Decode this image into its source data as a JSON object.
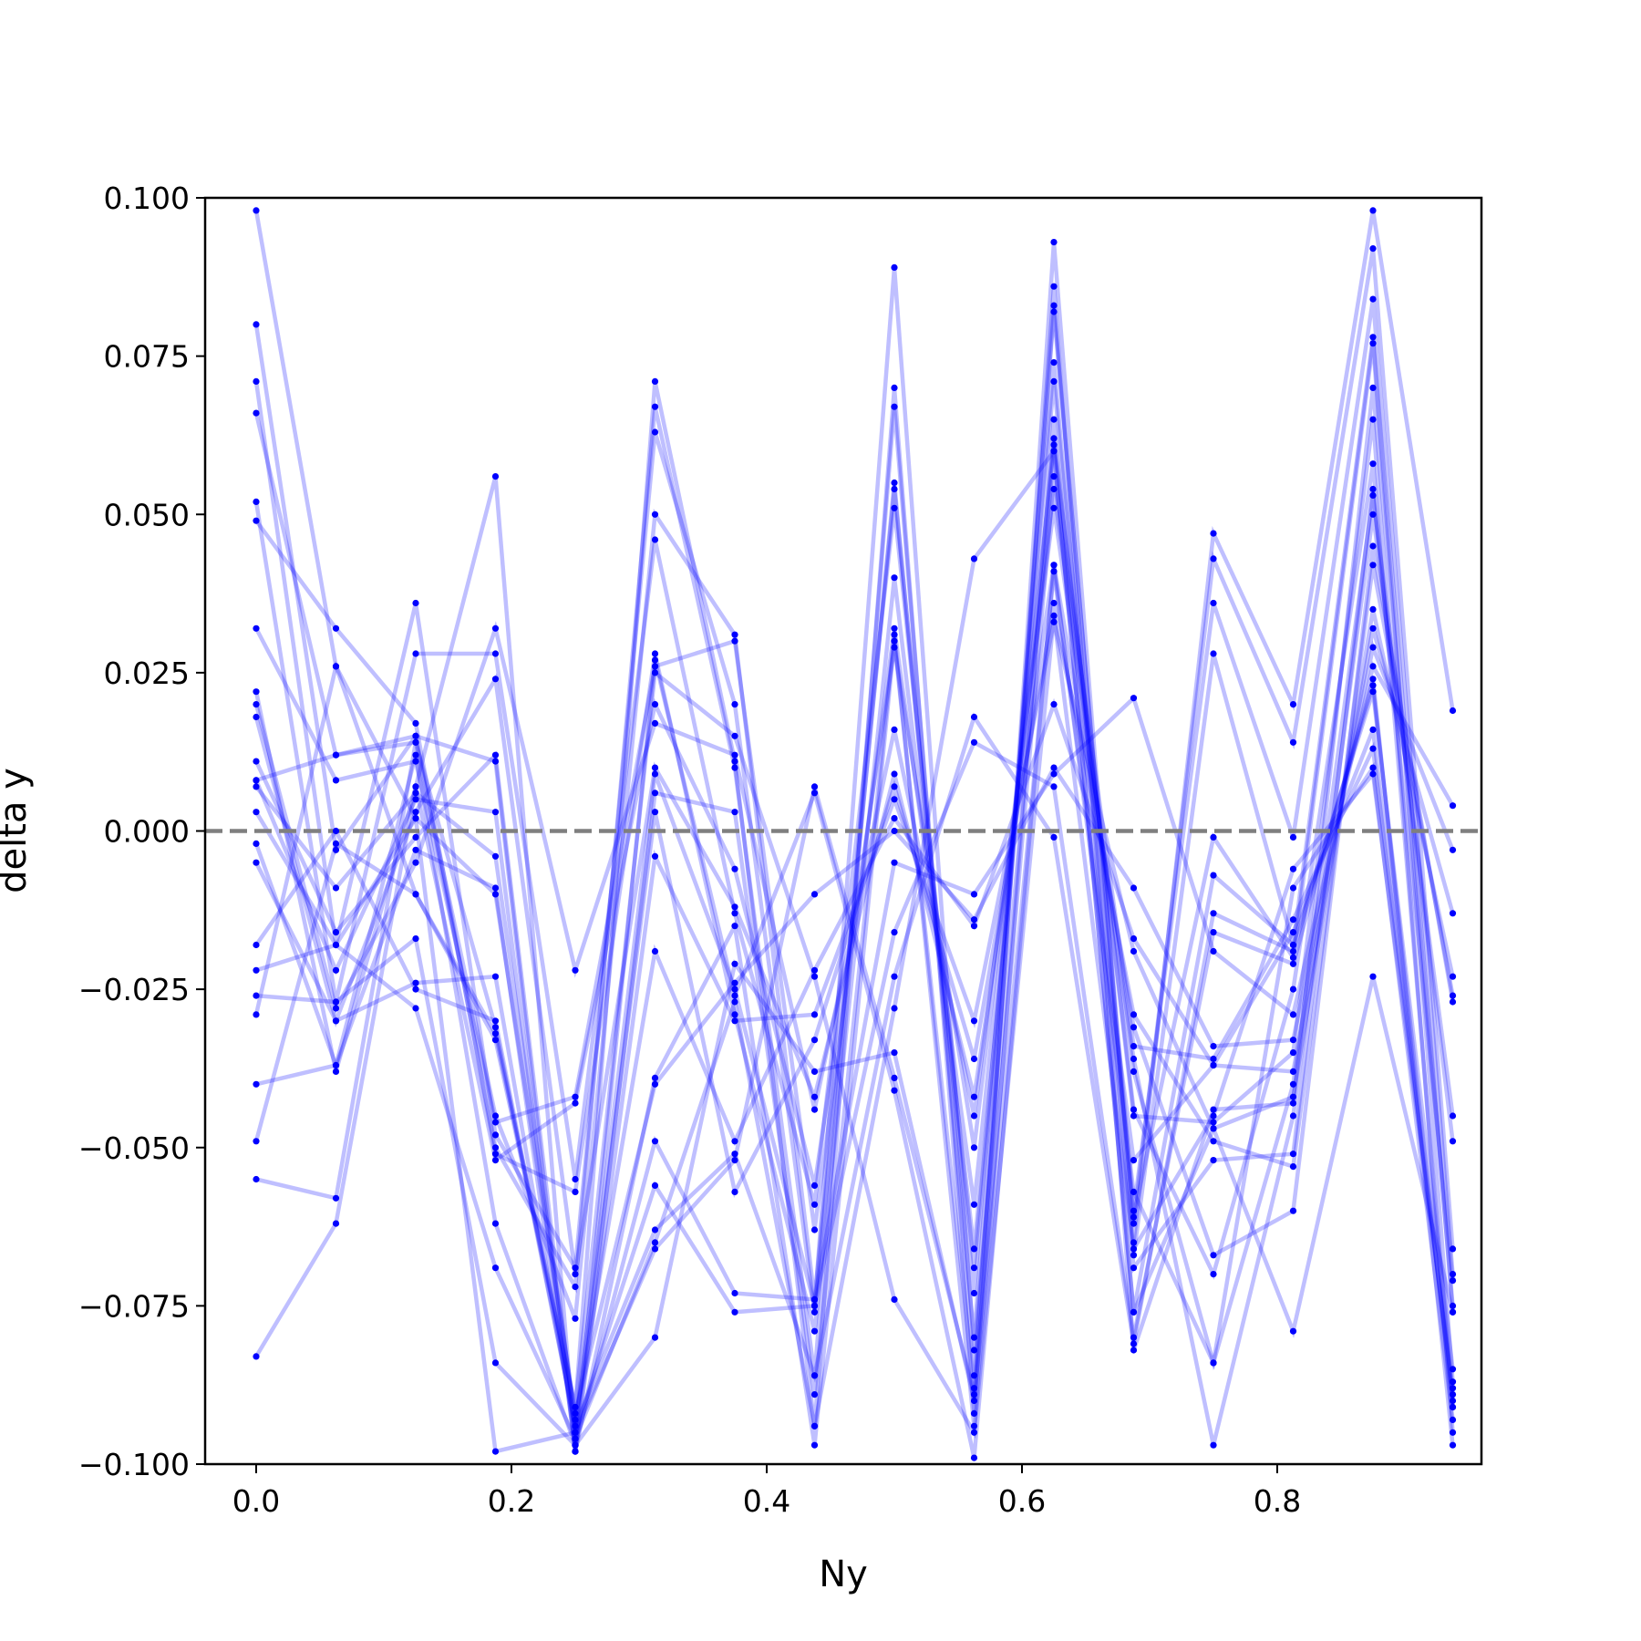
{
  "chart_data": {
    "type": "line",
    "title": "",
    "xlabel": "Ny",
    "ylabel": "delta y",
    "xlim": [
      -0.04,
      0.96
    ],
    "ylim": [
      -0.1,
      0.1
    ],
    "grid": false,
    "legend": "none",
    "x_ticks": [
      "0.0",
      "0.2",
      "0.4",
      "0.6",
      "0.8"
    ],
    "y_ticks": [
      "0.100",
      "0.075",
      "0.050",
      "0.025",
      "0.000",
      "−0.025",
      "−0.050",
      "−0.075",
      "−0.100"
    ],
    "x": [
      0.0,
      0.0625,
      0.125,
      0.1875,
      0.25,
      0.3125,
      0.375,
      0.4375,
      0.5,
      0.5625,
      0.625,
      0.6875,
      0.75,
      0.8125,
      0.875,
      0.9375
    ],
    "reference_line": {
      "y": 0.0,
      "style": "dashed",
      "color": "#7f7f7f"
    },
    "line_color": "#0000ff",
    "marker_color": "#0000ff",
    "series": [
      {
        "values": [
          0.098,
          0.026,
          -0.01,
          -0.032,
          -0.091,
          0.071,
          0.011,
          -0.094,
          0.07,
          -0.092,
          0.093,
          -0.065,
          0.047,
          0.02,
          0.098,
          0.019
        ]
      },
      {
        "values": [
          0.08,
          -0.003,
          0.015,
          -0.05,
          -0.072,
          0.067,
          0.01,
          -0.086,
          0.067,
          -0.086,
          0.083,
          -0.062,
          0.043,
          0.014,
          0.092,
          -0.066
        ]
      },
      {
        "values": [
          0.071,
          -0.018,
          0.036,
          -0.048,
          -0.069,
          0.063,
          0.02,
          -0.076,
          0.055,
          -0.08,
          0.082,
          -0.06,
          0.036,
          -0.001,
          0.084,
          -0.07
        ]
      },
      {
        "values": [
          0.066,
          0.012,
          0.014,
          -0.045,
          -0.077,
          0.05,
          0.031,
          -0.074,
          0.054,
          -0.073,
          0.074,
          -0.067,
          0.028,
          -0.018,
          0.078,
          -0.076
        ]
      },
      {
        "values": [
          0.052,
          -0.027,
          0.028,
          0.028,
          -0.055,
          0.046,
          -0.013,
          -0.059,
          0.051,
          -0.069,
          0.071,
          -0.061,
          -0.001,
          -0.02,
          0.077,
          -0.087
        ]
      },
      {
        "values": [
          0.049,
          0.032,
          0.017,
          -0.051,
          -0.057,
          0.028,
          -0.029,
          -0.079,
          0.04,
          -0.066,
          0.062,
          -0.045,
          -0.046,
          -0.035,
          0.065,
          -0.095
        ]
      },
      {
        "values": [
          0.032,
          0.008,
          0.011,
          -0.046,
          -0.042,
          0.026,
          0.03,
          -0.063,
          0.032,
          -0.059,
          0.061,
          -0.044,
          -0.07,
          -0.025,
          0.058,
          -0.091
        ]
      },
      {
        "values": [
          0.022,
          -0.038,
          0.007,
          -0.052,
          -0.043,
          0.02,
          -0.006,
          -0.056,
          0.029,
          -0.05,
          0.054,
          -0.038,
          -0.084,
          -0.04,
          0.053,
          -0.049
        ]
      },
      {
        "values": [
          0.02,
          -0.028,
          -0.005,
          0.032,
          -0.022,
          0.017,
          0.012,
          -0.044,
          0.016,
          -0.045,
          0.051,
          -0.036,
          -0.097,
          -0.045,
          0.05,
          -0.045
        ]
      },
      {
        "values": [
          0.018,
          -0.03,
          0.003,
          0.024,
          -0.07,
          0.01,
          -0.012,
          -0.042,
          0.009,
          -0.042,
          0.042,
          -0.031,
          -0.067,
          -0.06,
          0.045,
          -0.027
        ]
      },
      {
        "values": [
          0.011,
          -0.016,
          -0.001,
          0.012,
          -0.095,
          0.003,
          -0.057,
          -0.033,
          0.007,
          -0.036,
          0.036,
          -0.029,
          -0.049,
          -0.053,
          0.042,
          -0.026
        ]
      },
      {
        "values": [
          0.008,
          -0.022,
          0.005,
          0.003,
          -0.098,
          -0.004,
          -0.03,
          -0.029,
          0.005,
          -0.03,
          0.033,
          -0.019,
          -0.047,
          -0.042,
          0.035,
          -0.023
        ]
      },
      {
        "values": [
          0.007,
          -0.009,
          0.006,
          -0.004,
          -0.093,
          -0.019,
          -0.049,
          -0.022,
          0.002,
          -0.015,
          0.02,
          -0.017,
          -0.037,
          -0.038,
          0.032,
          -0.013
        ]
      },
      {
        "values": [
          0.003,
          -0.018,
          0.002,
          -0.01,
          -0.092,
          -0.04,
          -0.024,
          -0.01,
          0.0,
          -0.014,
          0.01,
          -0.009,
          -0.034,
          -0.033,
          0.029,
          -0.003
        ]
      },
      {
        "values": [
          -0.002,
          -0.037,
          -0.003,
          -0.009,
          -0.097,
          -0.049,
          -0.073,
          -0.074,
          -0.005,
          -0.01,
          0.009,
          0.021,
          -0.019,
          -0.029,
          0.026,
          0.004
        ]
      },
      {
        "values": [
          -0.005,
          -0.03,
          -0.024,
          -0.023,
          -0.095,
          -0.056,
          -0.076,
          -0.075,
          -0.016,
          0.014,
          0.007,
          -0.08,
          -0.016,
          -0.021,
          0.024,
          -0.097
        ]
      },
      {
        "values": [
          -0.018,
          0.0,
          -0.025,
          -0.03,
          -0.094,
          -0.063,
          -0.051,
          -0.086,
          -0.023,
          0.018,
          -0.001,
          -0.081,
          -0.013,
          -0.019,
          0.023,
          -0.091
        ]
      },
      {
        "values": [
          -0.022,
          -0.018,
          -0.028,
          -0.069,
          -0.096,
          -0.065,
          -0.027,
          -0.094,
          -0.028,
          0.043,
          0.06,
          -0.076,
          -0.007,
          -0.018,
          0.022,
          -0.085
        ]
      },
      {
        "values": [
          -0.026,
          -0.027,
          -0.017,
          -0.084,
          -0.097,
          -0.08,
          -0.021,
          -0.038,
          -0.035,
          -0.09,
          0.041,
          -0.052,
          -0.037,
          -0.016,
          0.016,
          -0.09
        ]
      },
      {
        "values": [
          -0.029,
          0.026,
          0.002,
          -0.098,
          -0.095,
          -0.066,
          -0.052,
          0.007,
          -0.039,
          -0.089,
          0.056,
          -0.034,
          -0.036,
          -0.014,
          0.013,
          -0.089
        ]
      },
      {
        "values": [
          -0.04,
          -0.037,
          0.012,
          -0.062,
          -0.097,
          0.027,
          -0.026,
          0.006,
          -0.041,
          -0.099,
          0.042,
          -0.057,
          -0.084,
          -0.009,
          0.01,
          -0.093
        ]
      },
      {
        "values": [
          -0.049,
          -0.002,
          -0.01,
          -0.033,
          -0.091,
          0.025,
          0.015,
          -0.023,
          -0.074,
          -0.095,
          0.034,
          -0.066,
          -0.045,
          -0.006,
          0.009,
          -0.088
        ]
      },
      {
        "values": [
          -0.055,
          -0.058,
          0.014,
          -0.031,
          -0.094,
          0.009,
          -0.025,
          -0.075,
          0.089,
          -0.082,
          0.06,
          -0.076,
          -0.047,
          -0.079,
          -0.023,
          -0.076
        ]
      },
      {
        "values": [
          -0.083,
          -0.062,
          0.007,
          0.056,
          -0.098,
          0.006,
          0.003,
          -0.089,
          0.031,
          -0.094,
          0.065,
          -0.069,
          -0.052,
          -0.051,
          0.054,
          -0.071
        ]
      },
      {
        "values": [
          0.008,
          0.012,
          0.015,
          0.011,
          -0.098,
          -0.039,
          -0.015,
          -0.097,
          0.03,
          -0.088,
          0.086,
          -0.082,
          -0.044,
          -0.043,
          0.07,
          -0.075
        ]
      }
    ]
  }
}
